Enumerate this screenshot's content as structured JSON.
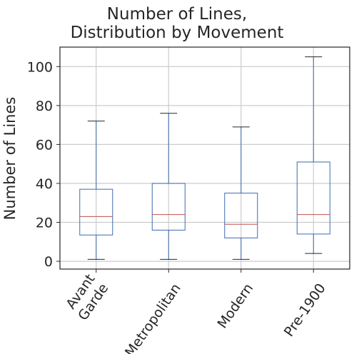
{
  "chart_data": {
    "type": "box",
    "title_lines": [
      "Number of Lines,",
      "Distribution by Movement"
    ],
    "ylabel": "Number of Lines",
    "xlabel": "",
    "ylim": [
      -4,
      110
    ],
    "yticks": [
      0,
      20,
      40,
      60,
      80,
      100
    ],
    "grid": true,
    "categories": [
      {
        "label_lines": [
          "Avant",
          "Garde"
        ],
        "whisker_low": 1,
        "q1": 13.5,
        "median": 23,
        "q3": 37,
        "whisker_high": 72
      },
      {
        "label_lines": [
          "Metropolitan"
        ],
        "whisker_low": 1,
        "q1": 16,
        "median": 24,
        "q3": 40,
        "whisker_high": 76
      },
      {
        "label_lines": [
          "Modern"
        ],
        "whisker_low": 1,
        "q1": 12,
        "median": 19,
        "q3": 35,
        "whisker_high": 69
      },
      {
        "label_lines": [
          "Pre-1900"
        ],
        "whisker_low": 4,
        "q1": 14,
        "median": 24,
        "q3": 51,
        "whisker_high": 105
      }
    ],
    "colors": {
      "box": "#3d6bb0",
      "median": "#c0504d",
      "whisker_cap": "#262626",
      "grid": "#cccccc",
      "axis": "#262626"
    }
  }
}
